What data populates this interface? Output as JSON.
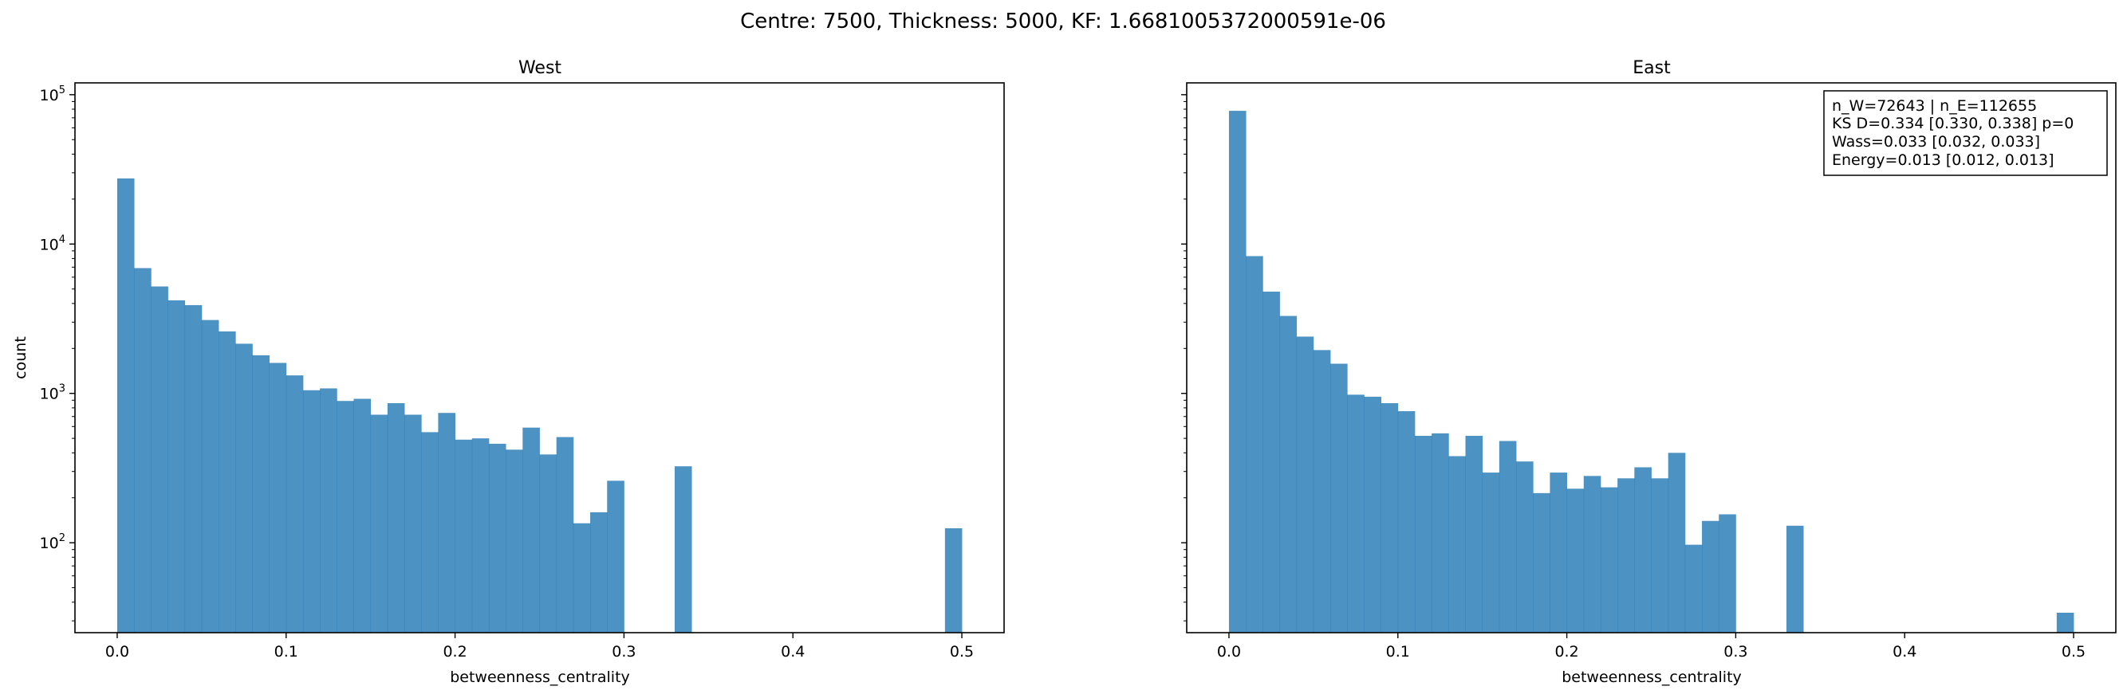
{
  "figure": {
    "suptitle": "Centre: 7500, Thickness: 5000, KF: 1.6681005372000591e-06"
  },
  "chart_data": [
    {
      "type": "bar",
      "title": "West",
      "xlabel": "betweenness_centrality",
      "ylabel": "count",
      "y_scale": "log",
      "ylim": [
        25,
        120000
      ],
      "xlim": [
        -0.025,
        0.525
      ],
      "x_ticks": [
        "0.0",
        "0.1",
        "0.2",
        "0.3",
        "0.4",
        "0.5"
      ],
      "y_ticks": [
        {
          "base": "10",
          "exp": "2"
        },
        {
          "base": "10",
          "exp": "3"
        },
        {
          "base": "10",
          "exp": "4"
        },
        {
          "base": "10",
          "exp": "5"
        }
      ],
      "bin_width": 0.01,
      "bin_start": 0.0,
      "bar_color": "#1f77b4",
      "bar_alpha": 0.8,
      "grid": false,
      "counts": [
        27500,
        6900,
        5200,
        4200,
        3900,
        3100,
        2600,
        2150,
        1800,
        1600,
        1320,
        1050,
        1080,
        890,
        920,
        720,
        860,
        720,
        550,
        740,
        490,
        500,
        460,
        420,
        590,
        390,
        510,
        135,
        160,
        260,
        0,
        0,
        0,
        325,
        0,
        0,
        0,
        0,
        0,
        0,
        0,
        0,
        0,
        0,
        0,
        0,
        0,
        0,
        0,
        125
      ]
    },
    {
      "type": "bar",
      "title": "East",
      "xlabel": "betweenness_centrality",
      "ylabel": "",
      "y_scale": "log",
      "ylim": [
        25,
        120000
      ],
      "xlim": [
        -0.025,
        0.525
      ],
      "x_ticks": [
        "0.0",
        "0.1",
        "0.2",
        "0.3",
        "0.4",
        "0.5"
      ],
      "bin_width": 0.01,
      "bin_start": 0.0,
      "bar_color": "#1f77b4",
      "bar_alpha": 0.8,
      "grid": false,
      "counts": [
        78000,
        8300,
        4800,
        3300,
        2400,
        1950,
        1580,
        980,
        950,
        860,
        760,
        520,
        540,
        380,
        520,
        295,
        480,
        350,
        215,
        295,
        230,
        280,
        235,
        270,
        320,
        270,
        400,
        97,
        140,
        155,
        0,
        0,
        0,
        130,
        0,
        0,
        0,
        0,
        0,
        0,
        0,
        0,
        0,
        0,
        0,
        0,
        0,
        0,
        0,
        34
      ],
      "annotation": {
        "placement": "top-right",
        "lines": [
          "n_W=72643 | n_E=112655",
          "KS D=0.334 [0.330, 0.338]  p=0",
          "Wass=0.033 [0.032, 0.033]",
          "Energy=0.013 [0.012, 0.013]"
        ]
      }
    }
  ]
}
